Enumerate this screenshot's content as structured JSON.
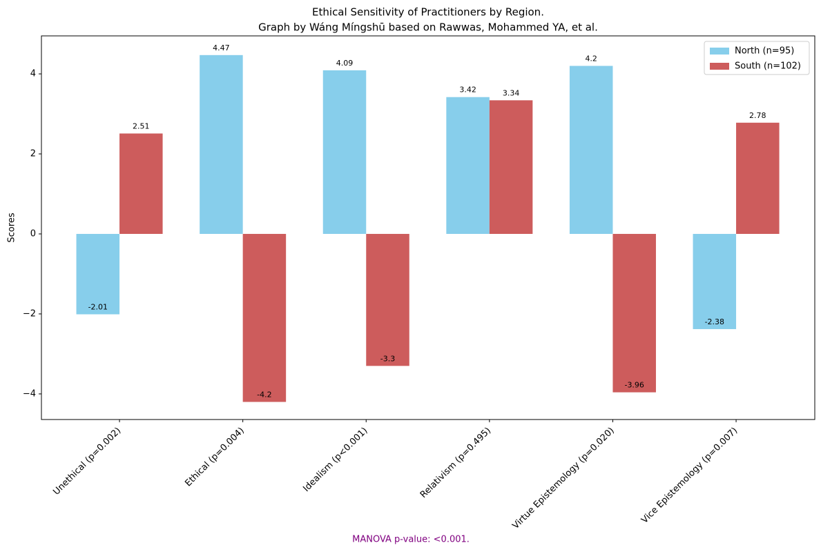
{
  "chart_data": {
    "type": "bar",
    "title": "Ethical Sensitivity of Practitioners by Region.",
    "subtitle": "Graph by Wáng Míngshū based on Rawwas, Mohammed YA, et al.",
    "y_label": "Scores",
    "annotation": "MANOVA p-value: <0.001.",
    "categories": [
      "Unethical (p=0.002)",
      "Ethical (p=0.004)",
      "Idealism (p<0.001)",
      "Relativism (p=0.495)",
      "Virtue Epistemology (p=0.020)",
      "Vice Epistemology (p=0.007)"
    ],
    "series": [
      {
        "name": "North (n=95)",
        "color": "#87ceeb",
        "values": [
          -2.01,
          4.47,
          4.09,
          3.42,
          4.2,
          -2.38
        ]
      },
      {
        "name": "South (n=102)",
        "color": "#cd5c5c",
        "values": [
          2.51,
          -4.2,
          -3.3,
          3.34,
          -3.96,
          2.78
        ]
      }
    ],
    "ylim": [
      -4.64,
      4.95
    ],
    "yticks": [
      {
        "value": -4,
        "label": "−4"
      },
      {
        "value": -2,
        "label": "−2"
      },
      0,
      2,
      4
    ],
    "legend": "upper right",
    "grid": false
  }
}
